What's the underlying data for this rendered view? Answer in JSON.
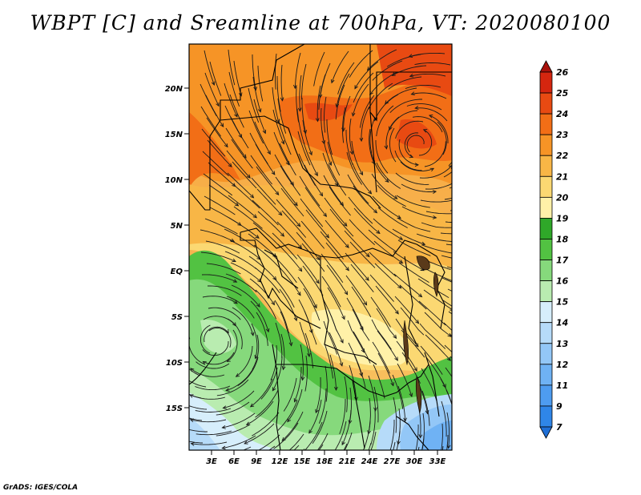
{
  "title": "WBPT [C] and Sreamline at 700hPa, VT: 2020080100",
  "credit": "GrADS: IGES/COLA",
  "map": {
    "lat_labels": [
      "20N",
      "15N",
      "10N",
      "5N",
      "EQ",
      "5S",
      "10S",
      "15S"
    ],
    "lon_labels": [
      "3E",
      "6E",
      "9E",
      "12E",
      "15E",
      "18E",
      "21E",
      "24E",
      "27E",
      "30E",
      "33E"
    ]
  },
  "colorbar": {
    "labels": [
      "7",
      "9",
      "11",
      "12",
      "13",
      "14",
      "15",
      "16",
      "17",
      "18",
      "19",
      "20",
      "21",
      "22",
      "23",
      "24",
      "25",
      "26"
    ],
    "colors": [
      "#1f6fd6",
      "#2f86e8",
      "#4e9cf0",
      "#6fb2f4",
      "#93c7f7",
      "#b6dbf9",
      "#d6eefb",
      "#b9ecb0",
      "#86d97c",
      "#52c242",
      "#2fa829",
      "#fff1a8",
      "#fbd872",
      "#f8b646",
      "#f69426",
      "#f26e16",
      "#e84a12",
      "#d5260f",
      "#a9120c"
    ]
  }
}
